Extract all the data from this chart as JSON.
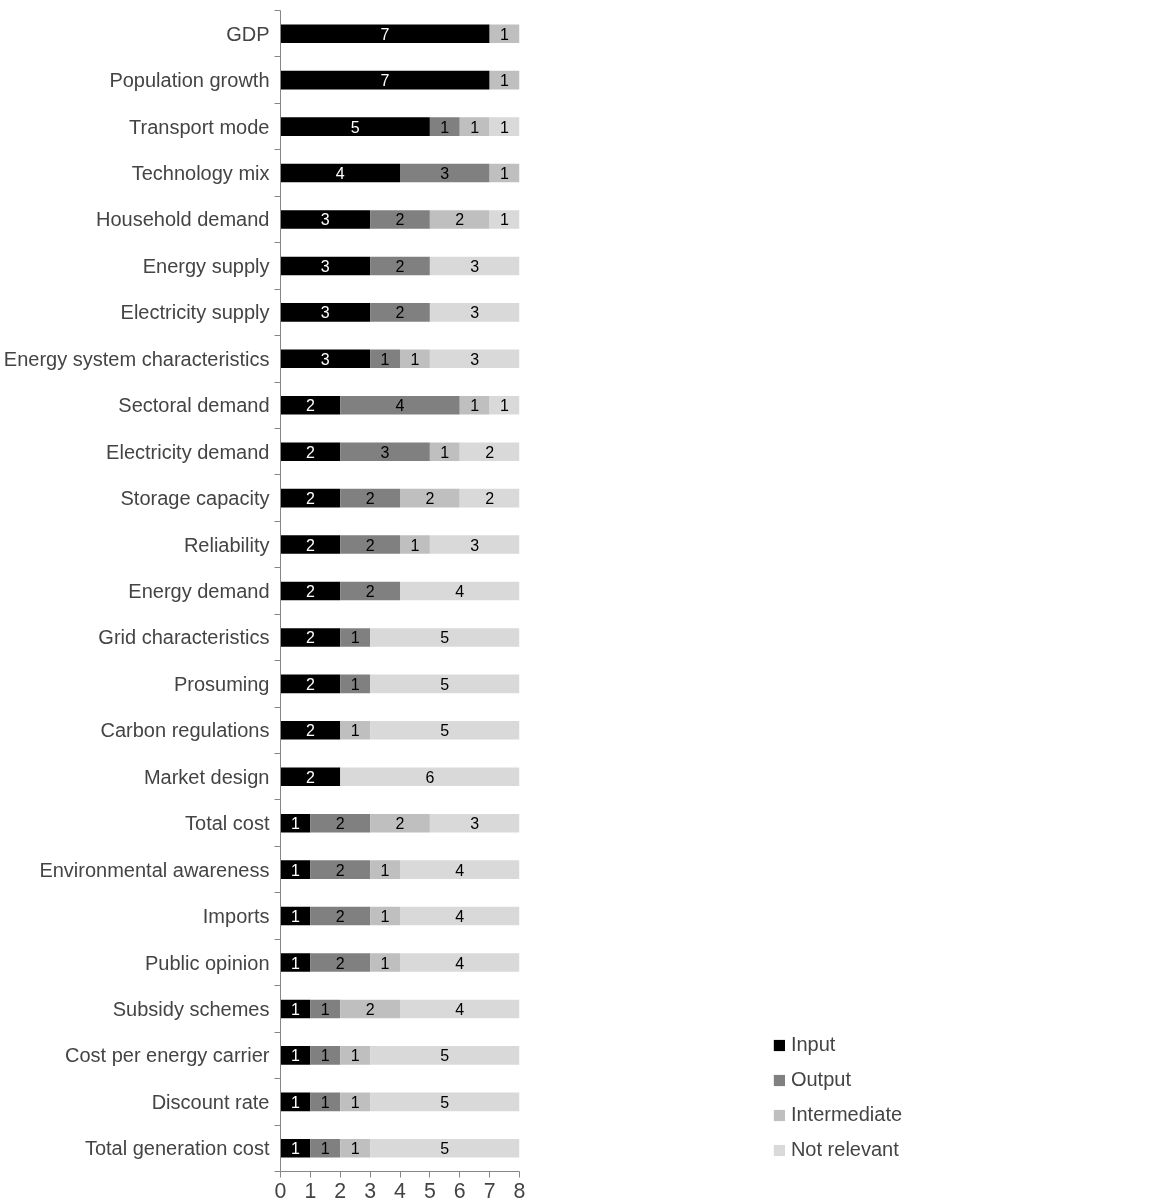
{
  "chart_data": {
    "type": "bar",
    "orientation": "horizontal",
    "stacked": true,
    "data_labels": true,
    "legend": "bottom right",
    "grid": false,
    "categories": [
      "GDP",
      "Population growth",
      "Transport mode",
      "Technology mix",
      "Household demand",
      "Energy supply",
      "Electricity supply",
      "Energy system characteristics",
      "Sectoral demand",
      "Electricity demand",
      "Storage capacity",
      "Reliability",
      "Energy demand",
      "Grid characteristics",
      "Prosuming",
      "Carbon regulations",
      "Market design",
      "Total cost",
      "Environmental awareness",
      "Imports",
      "Public opinion",
      "Subsidy schemes",
      "Cost per energy carrier",
      "Discount rate",
      "Total generation cost"
    ],
    "series": [
      {
        "name": "Input",
        "color": "#000000",
        "values": [
          7,
          7,
          5,
          4,
          3,
          3,
          3,
          3,
          2,
          2,
          2,
          2,
          2,
          2,
          2,
          2,
          2,
          1,
          1,
          1,
          1,
          1,
          1,
          1,
          1
        ]
      },
      {
        "name": "Output",
        "color": "#808080",
        "values": [
          null,
          null,
          1,
          3,
          2,
          2,
          2,
          1,
          4,
          3,
          2,
          2,
          2,
          1,
          1,
          null,
          null,
          2,
          2,
          2,
          2,
          1,
          1,
          1,
          1
        ]
      },
      {
        "name": "Intermediate",
        "color": "#bfbfbf",
        "values": [
          1,
          1,
          1,
          1,
          2,
          null,
          null,
          1,
          1,
          1,
          2,
          1,
          null,
          null,
          null,
          1,
          null,
          2,
          1,
          1,
          1,
          2,
          1,
          1,
          1
        ]
      },
      {
        "name": "Not relevant",
        "color": "#d9d9d9",
        "values": [
          null,
          null,
          1,
          null,
          1,
          3,
          3,
          3,
          1,
          2,
          2,
          3,
          4,
          5,
          5,
          5,
          6,
          3,
          4,
          4,
          4,
          4,
          5,
          5,
          5
        ]
      }
    ],
    "xlim": [
      0,
      8
    ],
    "xticks": [
      0,
      1,
      2,
      3,
      4,
      5,
      6,
      7,
      8
    ]
  }
}
